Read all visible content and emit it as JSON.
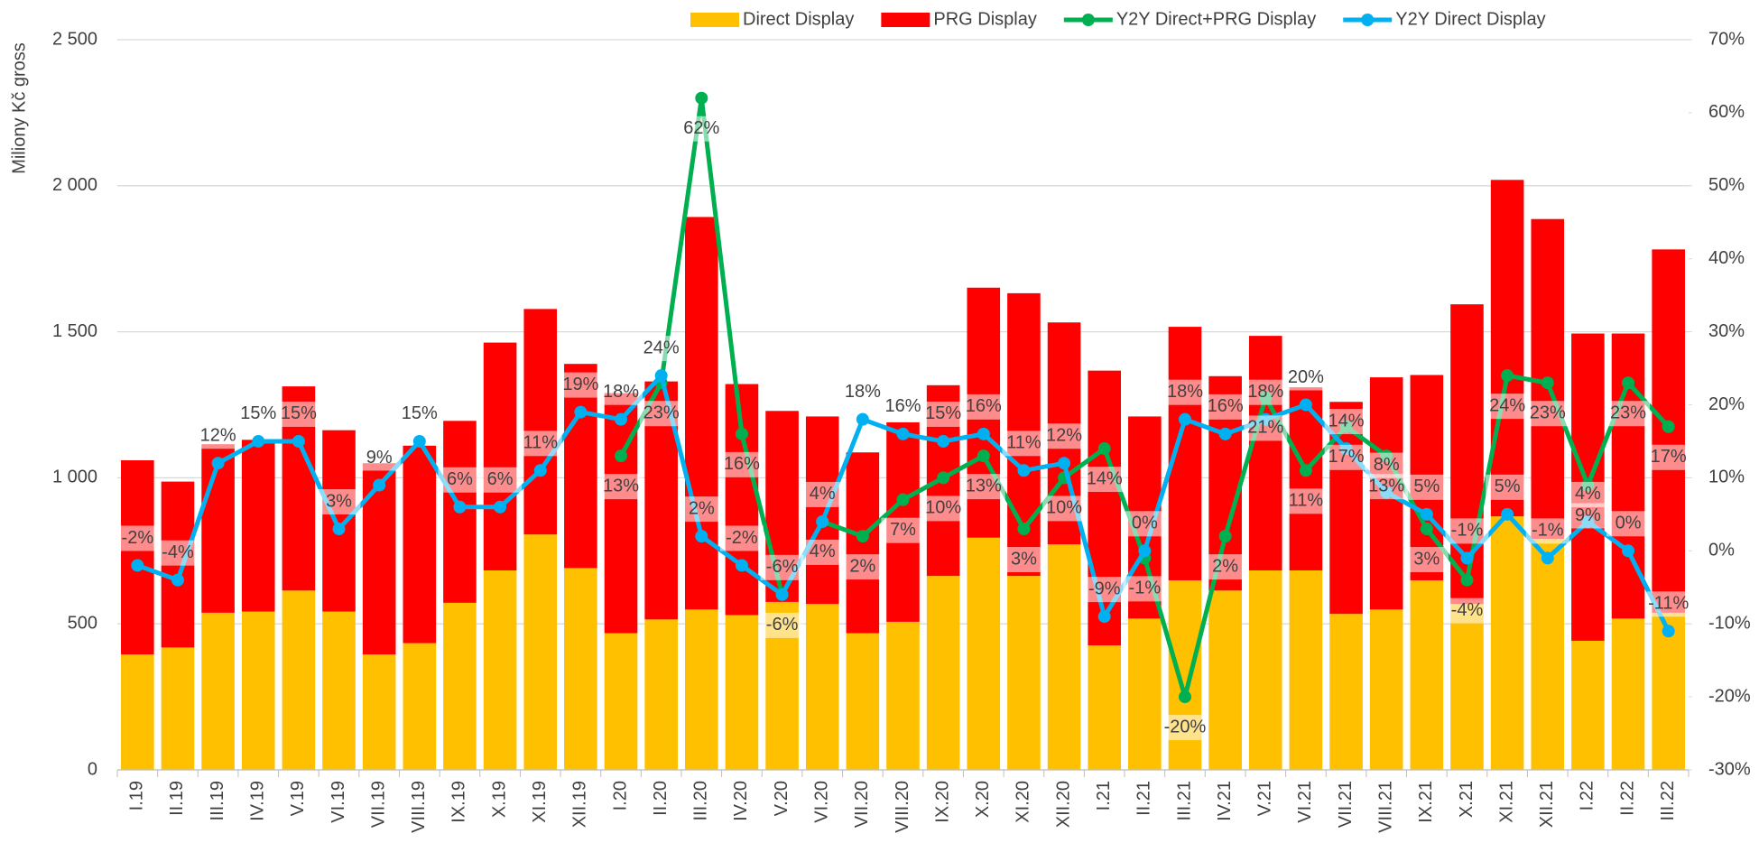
{
  "chart_data": {
    "type": "bar",
    "stacked": true,
    "y_label": "Miliony Kč gross",
    "categories": [
      "I.19",
      "II.19",
      "III.19",
      "IV.19",
      "V.19",
      "VI.19",
      "VII.19",
      "VIII.19",
      "IX.19",
      "X.19",
      "XI.19",
      "XII.19",
      "I.20",
      "II.20",
      "III.20",
      "IV.20",
      "V.20",
      "VI.20",
      "VII.20",
      "VIII.20",
      "IX.20",
      "X.20",
      "XI.20",
      "XII.20",
      "I.21",
      "II.21",
      "III.21",
      "IV.21",
      "V.21",
      "VI.21",
      "VII.21",
      "VIII.21",
      "IX.21",
      "X.21",
      "XI.21",
      "XII.21",
      "I.22",
      "II.22",
      "III.22"
    ],
    "series": [
      {
        "name": "Direct Display",
        "type": "bar",
        "color": "#FFC000",
        "values": [
          395,
          419,
          538,
          542,
          614,
          542,
          395,
          434,
          572,
          683,
          806,
          691,
          468,
          515,
          549,
          530,
          575,
          568,
          468,
          507,
          664,
          795,
          664,
          772,
          426,
          518,
          649,
          614,
          683,
          683,
          534,
          549,
          649,
          568,
          868,
          791,
          442,
          518,
          538
        ]
      },
      {
        "name": "PRG Display",
        "type": "bar",
        "color": "#FF0000",
        "values": [
          665,
          568,
          577,
          588,
          699,
          621,
          655,
          676,
          623,
          780,
          772,
          699,
          822,
          815,
          1344,
          791,
          654,
          642,
          619,
          683,
          653,
          856,
          968,
          760,
          941,
          692,
          868,
          734,
          803,
          627,
          726,
          795,
          703,
          1026,
          1152,
          1095,
          1052,
          976,
          1244
        ]
      },
      {
        "name": "Y2Y Direct+PRG Display",
        "type": "line",
        "axis": "y2",
        "color": "#00B050",
        "values": [
          null,
          null,
          null,
          null,
          null,
          null,
          null,
          null,
          null,
          null,
          null,
          null,
          13,
          23,
          62,
          16,
          -6,
          4,
          2,
          7,
          10,
          13,
          3,
          10,
          14,
          -1,
          -20,
          2,
          21,
          11,
          17,
          13,
          3,
          -4,
          24,
          23,
          9,
          23,
          17
        ],
        "value_labels": [
          null,
          null,
          null,
          null,
          null,
          null,
          null,
          null,
          null,
          null,
          null,
          null,
          "13%",
          "23%",
          "62%",
          "16%",
          "-6%",
          "4%",
          "2%",
          "7%",
          "10%",
          "13%",
          "3%",
          "10%",
          "14%",
          "-1%",
          "-20%",
          "2%",
          "21%",
          "11%",
          "17%",
          "13%",
          "3%",
          "-4%",
          "24%",
          "23%",
          "9%",
          "23%",
          "17%"
        ]
      },
      {
        "name": "Y2Y Direct Display",
        "type": "line",
        "axis": "y2",
        "color": "#00B0F0",
        "values": [
          -2,
          -4,
          12,
          15,
          15,
          3,
          9,
          15,
          6,
          6,
          11,
          19,
          18,
          24,
          2,
          -2,
          -6,
          4,
          18,
          16,
          15,
          16,
          11,
          12,
          -9,
          0,
          18,
          16,
          18,
          20,
          14,
          8,
          5,
          -1,
          5,
          -1,
          4,
          0,
          -11
        ],
        "value_labels": [
          "-2%",
          "-4%",
          "12%",
          "15%",
          "15%",
          "3%",
          "9%",
          "15%",
          "6%",
          "6%",
          "11%",
          "19%",
          "18%",
          "24%",
          "2%",
          "-2%",
          "-6%",
          "4%",
          "18%",
          "16%",
          "15%",
          "16%",
          "11%",
          "12%",
          "-9%",
          "0%",
          "18%",
          "16%",
          "18%",
          "20%",
          "14%",
          "8%",
          "5%",
          "-1%",
          "5%",
          "-1%",
          "4%",
          "0%",
          "-11%"
        ]
      }
    ],
    "ylim": [
      0,
      2500
    ],
    "yticks": [
      0,
      500,
      {
        "value": 1000,
        "label": "1 000"
      },
      {
        "value": 1500,
        "label": "1 500"
      },
      {
        "value": 2000,
        "label": "2 000"
      },
      {
        "value": 2500,
        "label": "2 500"
      }
    ],
    "y2lim": [
      -30,
      70
    ],
    "y2ticks": [
      {
        "value": -30,
        "label": "-30%"
      },
      {
        "value": -20,
        "label": "-20%"
      },
      {
        "value": -10,
        "label": "-10%"
      },
      {
        "value": 0,
        "label": "0%"
      },
      {
        "value": 10,
        "label": "10%"
      },
      {
        "value": 20,
        "label": "20%"
      },
      {
        "value": 30,
        "label": "30%"
      },
      {
        "value": 40,
        "label": "40%"
      },
      {
        "value": 50,
        "label": "50%"
      },
      {
        "value": 60,
        "label": "60%"
      },
      {
        "value": 70,
        "label": "70%"
      }
    ],
    "grid": true,
    "legend": "top"
  }
}
